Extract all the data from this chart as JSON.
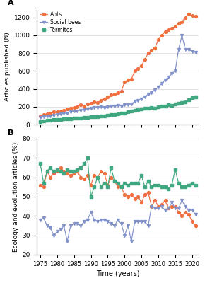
{
  "years": [
    1975,
    1976,
    1977,
    1978,
    1979,
    1980,
    1981,
    1982,
    1983,
    1984,
    1985,
    1986,
    1987,
    1988,
    1989,
    1990,
    1991,
    1992,
    1993,
    1994,
    1995,
    1996,
    1997,
    1998,
    1999,
    2000,
    2001,
    2002,
    2003,
    2004,
    2005,
    2006,
    2007,
    2008,
    2009,
    2010,
    2011,
    2012,
    2013,
    2014,
    2015,
    2016,
    2017,
    2018,
    2019,
    2020,
    2021
  ],
  "ants": [
    100,
    115,
    120,
    130,
    140,
    145,
    155,
    160,
    175,
    185,
    195,
    200,
    220,
    210,
    230,
    240,
    255,
    250,
    270,
    290,
    310,
    330,
    345,
    360,
    370,
    480,
    500,
    510,
    600,
    630,
    660,
    730,
    800,
    830,
    860,
    950,
    1000,
    1040,
    1060,
    1080,
    1100,
    1130,
    1150,
    1200,
    1240,
    1220,
    1210
  ],
  "social_bees": [
    80,
    90,
    95,
    100,
    105,
    110,
    120,
    125,
    130,
    145,
    150,
    155,
    160,
    170,
    175,
    185,
    190,
    195,
    200,
    195,
    200,
    205,
    210,
    215,
    210,
    220,
    225,
    230,
    260,
    270,
    290,
    310,
    340,
    360,
    390,
    420,
    460,
    500,
    530,
    570,
    600,
    840,
    1000,
    840,
    840,
    820,
    810
  ],
  "termites": [
    30,
    40,
    45,
    50,
    55,
    55,
    60,
    62,
    65,
    65,
    70,
    72,
    75,
    78,
    80,
    85,
    90,
    90,
    95,
    100,
    105,
    110,
    115,
    120,
    125,
    130,
    140,
    150,
    160,
    165,
    175,
    180,
    185,
    190,
    185,
    200,
    205,
    210,
    220,
    215,
    230,
    240,
    245,
    255,
    280,
    305,
    310
  ],
  "ants_pct": [
    56,
    55,
    63,
    60,
    62,
    63,
    65,
    63,
    62,
    61,
    62,
    63,
    60,
    59,
    61,
    56,
    61,
    60,
    63,
    62,
    56,
    60,
    58,
    55,
    55,
    51,
    50,
    51,
    49,
    50,
    47,
    51,
    52,
    45,
    48,
    45,
    46,
    48,
    44,
    45,
    45,
    42,
    40,
    42,
    41,
    37,
    35
  ],
  "social_bees_pct": [
    38,
    39,
    35,
    34,
    30,
    32,
    33,
    35,
    27,
    35,
    36,
    36,
    35,
    37,
    38,
    42,
    38,
    37,
    38,
    38,
    37,
    36,
    35,
    38,
    36,
    30,
    35,
    27,
    37,
    37,
    37,
    37,
    35,
    45,
    44,
    44,
    45,
    43,
    44,
    47,
    44,
    44,
    48,
    45,
    43,
    43,
    41
  ],
  "termites_pct": [
    67,
    57,
    63,
    65,
    63,
    64,
    63,
    62,
    64,
    63,
    63,
    64,
    65,
    67,
    70,
    50,
    55,
    60,
    55,
    57,
    55,
    65,
    58,
    57,
    55,
    57,
    56,
    57,
    57,
    57,
    61,
    55,
    58,
    55,
    56,
    56,
    55,
    55,
    54,
    56,
    64,
    57,
    55,
    55,
    56,
    57,
    56
  ],
  "color_ants": "#f07040",
  "color_bees": "#8090c8",
  "color_termites": "#40a880",
  "panel_a_ylabel": "Articles published (N)",
  "panel_b_ylabel": "Ecology and evolution articles (%)",
  "xlabel": "Time (years)",
  "ylim_a": [
    0,
    1300
  ],
  "yticks_a": [
    0,
    200,
    400,
    600,
    800,
    1000,
    1200
  ],
  "ylim_b": [
    20,
    80
  ],
  "yticks_b": [
    20,
    30,
    40,
    50,
    60,
    70,
    80
  ],
  "xlim": [
    1974,
    2022
  ],
  "xticks": [
    1975,
    1980,
    1985,
    1990,
    1995,
    2000,
    2005,
    2010,
    2015,
    2020
  ]
}
